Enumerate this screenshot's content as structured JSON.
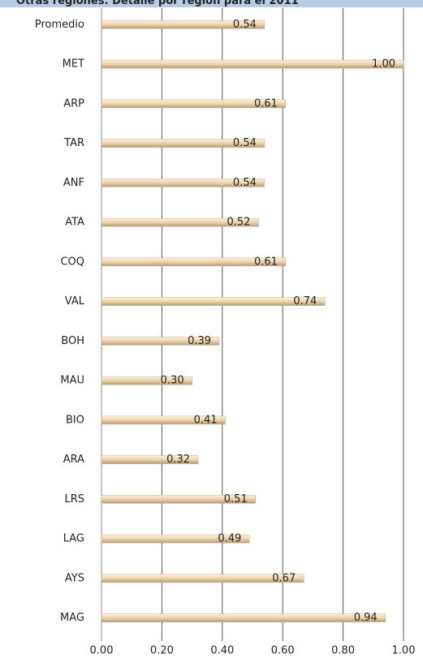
{
  "chart_data": {
    "type": "bar",
    "orientation": "horizontal",
    "title": "Otras regiones: Detalle por región para el 2011",
    "categories": [
      "Promedio",
      "MET",
      "ARP",
      "TAR",
      "ANF",
      "ATA",
      "COQ",
      "VAL",
      "BOH",
      "MAU",
      "BIO",
      "ARA",
      "LRS",
      "LAG",
      "AYS",
      "MAG"
    ],
    "values": [
      0.54,
      1.0,
      0.61,
      0.54,
      0.54,
      0.52,
      0.61,
      0.74,
      0.39,
      0.3,
      0.41,
      0.32,
      0.51,
      0.49,
      0.67,
      0.94
    ],
    "value_labels": [
      "0.54",
      "1.00",
      "0.61",
      "0.54",
      "0.54",
      "0.52",
      "0.61",
      "0.74",
      "0.39",
      "0.30",
      "0.41",
      "0.32",
      "0.51",
      "0.49",
      "0.67",
      "0.94"
    ],
    "color": "#ecd3ad",
    "xlim": [
      0,
      1.0
    ],
    "xticks": [
      {
        "value": 0,
        "label": "0.00"
      },
      {
        "value": 0.2,
        "label": "0.20"
      },
      {
        "value": 0.4,
        "label": "0.40"
      },
      {
        "value": 0.6,
        "label": "0.60"
      },
      {
        "value": 0.8,
        "label": "0.80"
      },
      {
        "value": 1.0,
        "label": "1.00"
      }
    ],
    "grid": true
  }
}
